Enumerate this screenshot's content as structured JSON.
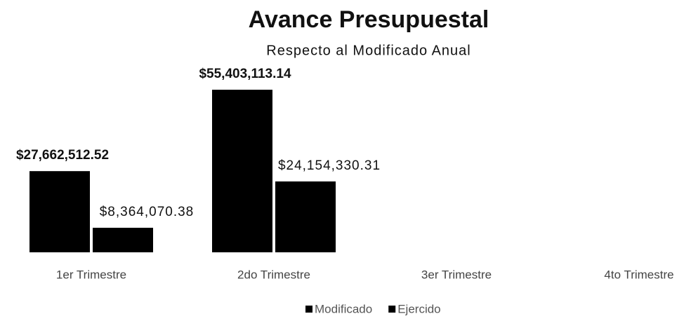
{
  "chart_data": {
    "type": "bar",
    "title": "Avance Presupuestal",
    "subtitle": "Respecto al Modificado Anual",
    "categories": [
      "1er Trimestre",
      "2do Trimestre",
      "3er Trimestre",
      "4to Trimestre"
    ],
    "series": [
      {
        "name": "Modificado",
        "color": "#000000",
        "values": [
          27662512.52,
          55403113.14,
          null,
          null
        ],
        "value_labels": [
          "$27,662,512.52",
          "$55,403,113.14",
          null,
          null
        ]
      },
      {
        "name": "Ejercido",
        "color": "#000000",
        "values": [
          8364070.38,
          24154330.31,
          null,
          null
        ],
        "value_labels": [
          "$8,364,070.38",
          "$24,154,330.31",
          null,
          null
        ]
      }
    ],
    "legend": "bottom"
  }
}
